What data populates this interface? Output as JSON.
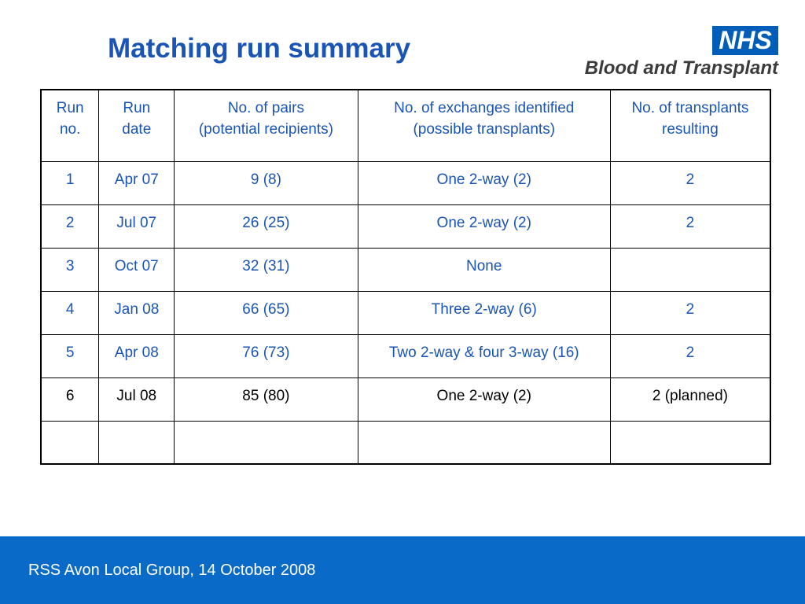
{
  "slide": {
    "title": "Matching run summary",
    "logo": {
      "mark": "NHS",
      "organisation": "Blood and Transplant"
    },
    "footer": "RSS Avon Local Group, 14 October 2008"
  },
  "table": {
    "headers": [
      {
        "line1": "Run",
        "line2": "no."
      },
      {
        "line1": "Run",
        "line2": "date"
      },
      {
        "line1": "No. of pairs",
        "line2": "(potential recipients)"
      },
      {
        "line1": "No. of exchanges identified",
        "line2": "(possible transplants)"
      },
      {
        "line1": "No. of transplants",
        "line2": "resulting"
      }
    ],
    "rows": [
      [
        "1",
        "Apr 07",
        "9 (8)",
        "One 2-way (2)",
        "2"
      ],
      [
        "2",
        "Jul 07",
        "26 (25)",
        "One 2-way (2)",
        "2"
      ],
      [
        "3",
        "Oct 07",
        "32 (31)",
        "None",
        ""
      ],
      [
        "4",
        "Jan 08",
        "66 (65)",
        "Three 2-way (6)",
        "2"
      ],
      [
        "5",
        "Apr 08",
        "76 (73)",
        "Two 2-way & four 3-way (16)",
        "2"
      ],
      [
        "6",
        "Jul 08",
        "85 (80)",
        "One 2-way (2)",
        "2 (planned)"
      ],
      [
        "",
        "",
        "",
        "",
        ""
      ]
    ]
  },
  "colors": {
    "title_blue": "#1a55b5",
    "nhs_blue": "#005eb8",
    "footer_blue": "#0a6ac8"
  }
}
